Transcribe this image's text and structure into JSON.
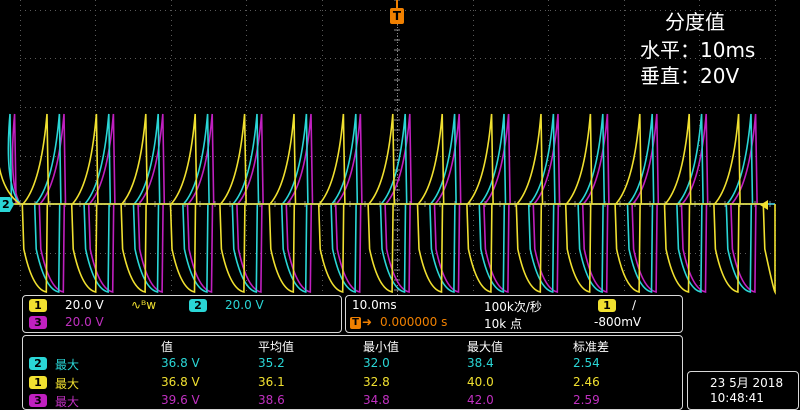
{
  "overlay": {
    "title": "分度值",
    "horizontal": "水平：10ms",
    "vertical": "垂直：20V"
  },
  "markers": {
    "trigger_pos": "T",
    "ch2_level": "2"
  },
  "channels": {
    "ch1": {
      "num": "1",
      "scale": "20.0 V",
      "bw": "∿ᴮw",
      "color": "#f0e030"
    },
    "ch2": {
      "num": "2",
      "scale": "20.0 V",
      "color": "#2ad6d6"
    },
    "ch3": {
      "num": "3",
      "scale": "20.0 V",
      "color": "#c020c0"
    }
  },
  "timebase": {
    "scale": "10.0ms",
    "rate": "100k次/秒",
    "trigger_offset": "0.000000 s",
    "record": "10k 点",
    "trigger_ch": "1",
    "trigger_slope": "∕",
    "trigger_level": "-800mV"
  },
  "measurements": {
    "headers": [
      "值",
      "平均值",
      "最小值",
      "最大值",
      "标准差"
    ],
    "rows": [
      {
        "ch": "2",
        "label": "最大",
        "values": [
          "36.8 V",
          "35.2",
          "32.0",
          "38.4",
          "2.54"
        ]
      },
      {
        "ch": "1",
        "label": "最大",
        "values": [
          "36.8 V",
          "36.1",
          "32.8",
          "40.0",
          "2.46"
        ]
      },
      {
        "ch": "3",
        "label": "最大",
        "values": [
          "39.6 V",
          "38.6",
          "34.8",
          "42.0",
          "2.59"
        ]
      }
    ]
  },
  "clock": {
    "date": "23 5月 2018",
    "time": "10:48:41"
  }
}
